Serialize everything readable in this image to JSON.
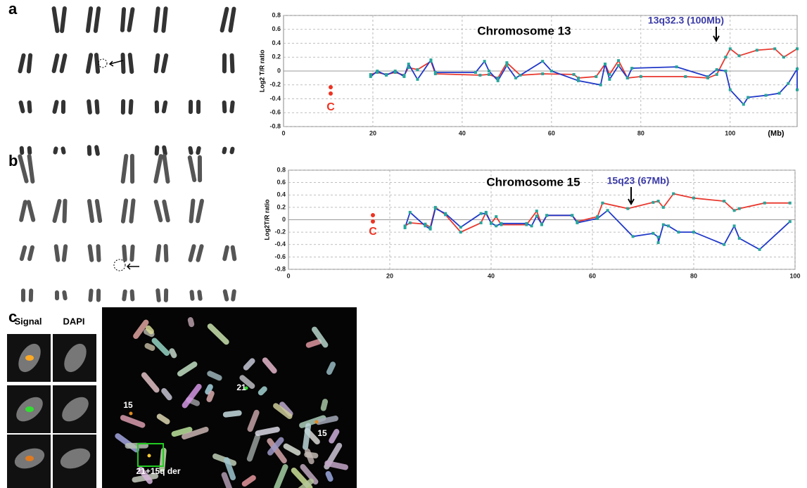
{
  "panel_labels": [
    "a",
    "b",
    "c"
  ],
  "chart_data": [
    {
      "type": "line",
      "title": "Chromosome 13",
      "annotation": "13q32.3 (100Mb)",
      "x_unit_label": "(Mb)",
      "y_label": "Log2 T/R ratio",
      "side_label": "C",
      "xlim": [
        0,
        115
      ],
      "ylim": [
        -0.8,
        0.8
      ],
      "xticks": [
        0,
        20,
        40,
        60,
        80,
        100
      ],
      "yticks": [
        0.8,
        0.6,
        0.4,
        0.2,
        0,
        -0.2,
        -0.4,
        -0.6,
        -0.8
      ],
      "grid": true,
      "marker_color": "#27a59b",
      "series": [
        {
          "color": "#e8392f",
          "x": [
            19.5,
            21,
            23,
            25,
            27,
            28,
            30,
            33,
            34,
            44,
            46,
            48,
            50,
            53,
            58,
            65,
            66,
            70,
            72,
            73,
            75,
            77,
            80,
            90,
            95,
            97,
            99,
            100,
            102,
            106,
            110,
            112,
            115
          ],
          "values": [
            -0.05,
            -0.02,
            -0.05,
            -0.02,
            -0.06,
            0.05,
            0.02,
            0.14,
            -0.04,
            -0.06,
            -0.05,
            -0.1,
            0.12,
            -0.06,
            -0.04,
            -0.05,
            -0.1,
            -0.08,
            0.1,
            -0.05,
            0.15,
            -0.1,
            -0.08,
            -0.08,
            -0.1,
            -0.05,
            0.2,
            0.32,
            0.22,
            0.3,
            0.32,
            0.2,
            0.32
          ]
        },
        {
          "color": "#2038c8",
          "x": [
            19.5,
            21,
            23,
            25,
            27,
            28,
            30,
            33,
            34,
            43,
            45,
            46,
            48,
            50,
            52,
            58,
            60,
            66,
            71,
            72,
            73,
            75,
            77,
            78,
            88,
            95,
            97,
            99,
            100,
            103,
            104,
            108,
            111,
            113,
            115,
            115
          ],
          "values": [
            -0.08,
            0,
            -0.06,
            0,
            -0.08,
            0.1,
            -0.12,
            0.16,
            -0.02,
            -0.02,
            0.14,
            0,
            -0.14,
            0.08,
            -0.1,
            0.14,
            0,
            -0.14,
            -0.2,
            0.1,
            -0.12,
            0.08,
            -0.1,
            0.04,
            0.06,
            -0.08,
            0.02,
            0,
            -0.27,
            -0.48,
            -0.38,
            -0.35,
            -0.32,
            -0.18,
            0.03,
            -0.27
          ]
        }
      ]
    },
    {
      "type": "line",
      "title": "Chromosome 15",
      "annotation": "15q23 (67Mb)",
      "y_label": "Log2T/R ratio",
      "side_label": "C",
      "xlim": [
        0,
        100
      ],
      "ylim": [
        -0.8,
        0.8
      ],
      "xticks": [
        0,
        20,
        40,
        60,
        80,
        100
      ],
      "yticks": [
        0.8,
        0.6,
        0.4,
        0.2,
        0,
        -0.2,
        -0.4,
        -0.6,
        -0.8
      ],
      "grid": true,
      "marker_color": "#27a59b",
      "series": [
        {
          "color": "#e8392f",
          "x": [
            23,
            24,
            27,
            28,
            29,
            31,
            34,
            38,
            39,
            40,
            41,
            42,
            47,
            49,
            50,
            51,
            56,
            57,
            61,
            62,
            67,
            72,
            73,
            74,
            76,
            80,
            86,
            88,
            89,
            94,
            99
          ],
          "values": [
            -0.1,
            -0.05,
            -0.07,
            -0.12,
            0.2,
            0.08,
            -0.2,
            -0.05,
            0.12,
            -0.06,
            0.05,
            -0.08,
            -0.08,
            0.14,
            -0.08,
            0.07,
            0.07,
            -0.03,
            0.05,
            0.27,
            0.18,
            0.28,
            0.3,
            0.2,
            0.42,
            0.35,
            0.3,
            0.15,
            0.18,
            0.27,
            0.27
          ]
        },
        {
          "color": "#2038c8",
          "x": [
            23,
            24,
            27,
            28,
            29,
            31,
            34,
            38,
            39,
            40,
            41,
            42,
            47,
            48,
            49,
            50,
            51,
            56,
            57,
            61,
            63,
            68,
            72,
            73,
            73,
            74,
            75,
            77,
            80,
            86,
            88,
            89,
            93,
            99
          ],
          "values": [
            -0.13,
            0.12,
            -0.1,
            -0.15,
            0.18,
            0.1,
            -0.12,
            0.1,
            0.1,
            -0.05,
            -0.1,
            -0.06,
            -0.06,
            -0.1,
            0.06,
            -0.07,
            0.07,
            0.07,
            -0.05,
            0.02,
            0.15,
            -0.27,
            -0.22,
            -0.28,
            -0.37,
            -0.08,
            -0.1,
            -0.2,
            -0.2,
            -0.4,
            -0.1,
            -0.3,
            -0.48,
            -0.03
          ]
        }
      ]
    }
  ],
  "micrograph": {
    "inset_headers": [
      "Signal",
      "DAPI"
    ],
    "labels": [
      "15",
      "21",
      "15",
      "21+15q der"
    ]
  }
}
